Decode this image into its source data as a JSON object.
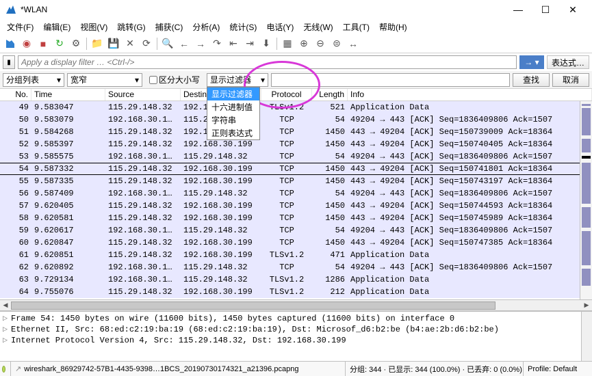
{
  "window": {
    "title": "*WLAN"
  },
  "menu": [
    "文件(F)",
    "编辑(E)",
    "视图(V)",
    "跳转(G)",
    "捕获(C)",
    "分析(A)",
    "统计(S)",
    "电话(Y)",
    "无线(W)",
    "工具(T)",
    "帮助(H)"
  ],
  "filter": {
    "placeholder": "Apply a display filter … <Ctrl-/>",
    "expr_label": "表达式…"
  },
  "search": {
    "dd1": "分组列表",
    "dd2": "宽窄",
    "chk": "区分大小写",
    "dd3": "显示过滤器",
    "options": [
      "显示过滤器",
      "十六进制值",
      "字符串",
      "正则表达式"
    ],
    "btn_find": "查找",
    "btn_cancel": "取消"
  },
  "columns": [
    "No.",
    "Time",
    "Source",
    "Destination",
    "Protocol",
    "Length",
    "Info"
  ],
  "rows": [
    {
      "no": "49",
      "time": "9.583047",
      "src": "115.29.148.32",
      "dst": "192.168.30.199",
      "proto": "TLSv1.2",
      "len": "521",
      "info": "Application Data"
    },
    {
      "no": "50",
      "time": "9.583079",
      "src": "192.168.30.1…",
      "dst": "115.29.148.32",
      "proto": "TCP",
      "len": "54",
      "info": "49204 → 443 [ACK] Seq=1836409806 Ack=1507"
    },
    {
      "no": "51",
      "time": "9.584268",
      "src": "115.29.148.32",
      "dst": "192.168.30.199",
      "proto": "TCP",
      "len": "1450",
      "info": "443 → 49204 [ACK] Seq=150739009 Ack=18364"
    },
    {
      "no": "52",
      "time": "9.585397",
      "src": "115.29.148.32",
      "dst": "192.168.30.199",
      "proto": "TCP",
      "len": "1450",
      "info": "443 → 49204 [ACK] Seq=150740405 Ack=18364"
    },
    {
      "no": "53",
      "time": "9.585575",
      "src": "192.168.30.1…",
      "dst": "115.29.148.32",
      "proto": "TCP",
      "len": "54",
      "info": "49204 → 443 [ACK] Seq=1836409806 Ack=1507"
    },
    {
      "no": "54",
      "time": "9.587332",
      "src": "115.29.148.32",
      "dst": "192.168.30.199",
      "proto": "TCP",
      "len": "1450",
      "info": "443 → 49204 [ACK] Seq=150741801 Ack=18364",
      "sel": true
    },
    {
      "no": "55",
      "time": "9.587335",
      "src": "115.29.148.32",
      "dst": "192.168.30.199",
      "proto": "TCP",
      "len": "1450",
      "info": "443 → 49204 [ACK] Seq=150743197 Ack=18364"
    },
    {
      "no": "56",
      "time": "9.587409",
      "src": "192.168.30.1…",
      "dst": "115.29.148.32",
      "proto": "TCP",
      "len": "54",
      "info": "49204 → 443 [ACK] Seq=1836409806 Ack=1507"
    },
    {
      "no": "57",
      "time": "9.620405",
      "src": "115.29.148.32",
      "dst": "192.168.30.199",
      "proto": "TCP",
      "len": "1450",
      "info": "443 → 49204 [ACK] Seq=150744593 Ack=18364"
    },
    {
      "no": "58",
      "time": "9.620581",
      "src": "115.29.148.32",
      "dst": "192.168.30.199",
      "proto": "TCP",
      "len": "1450",
      "info": "443 → 49204 [ACK] Seq=150745989 Ack=18364"
    },
    {
      "no": "59",
      "time": "9.620617",
      "src": "192.168.30.1…",
      "dst": "115.29.148.32",
      "proto": "TCP",
      "len": "54",
      "info": "49204 → 443 [ACK] Seq=1836409806 Ack=1507"
    },
    {
      "no": "60",
      "time": "9.620847",
      "src": "115.29.148.32",
      "dst": "192.168.30.199",
      "proto": "TCP",
      "len": "1450",
      "info": "443 → 49204 [ACK] Seq=150747385 Ack=18364"
    },
    {
      "no": "61",
      "time": "9.620851",
      "src": "115.29.148.32",
      "dst": "192.168.30.199",
      "proto": "TLSv1.2",
      "len": "471",
      "info": "Application Data"
    },
    {
      "no": "62",
      "time": "9.620892",
      "src": "192.168.30.1…",
      "dst": "115.29.148.32",
      "proto": "TCP",
      "len": "54",
      "info": "49204 → 443 [ACK] Seq=1836409806 Ack=1507"
    },
    {
      "no": "63",
      "time": "9.729134",
      "src": "192.168.30.1…",
      "dst": "115.29.148.32",
      "proto": "TLSv1.2",
      "len": "1286",
      "info": "Application Data"
    },
    {
      "no": "64",
      "time": "9.755076",
      "src": "115.29.148.32",
      "dst": "192.168.30.199",
      "proto": "TLSv1.2",
      "len": "212",
      "info": "Application Data"
    }
  ],
  "details": [
    "Frame 54: 1450 bytes on wire (11600 bits), 1450 bytes captured (11600 bits) on interface 0",
    "Ethernet II, Src: 68:ed:c2:19:ba:19 (68:ed:c2:19:ba:19), Dst: Microsof_d6:b2:be (b4:ae:2b:d6:b2:be)",
    "Internet Protocol Version 4, Src: 115.29.148.32, Dst: 192.168.30.199"
  ],
  "status": {
    "file": "wireshark_86929742-57B1-4435-9398…1BCS_20190730174321_a21396.pcapng",
    "pkts": "分组: 344 · 已显示: 344 (100.0%) · 已丢弃: 0 (0.0%)",
    "profile": "Profile: Default"
  }
}
